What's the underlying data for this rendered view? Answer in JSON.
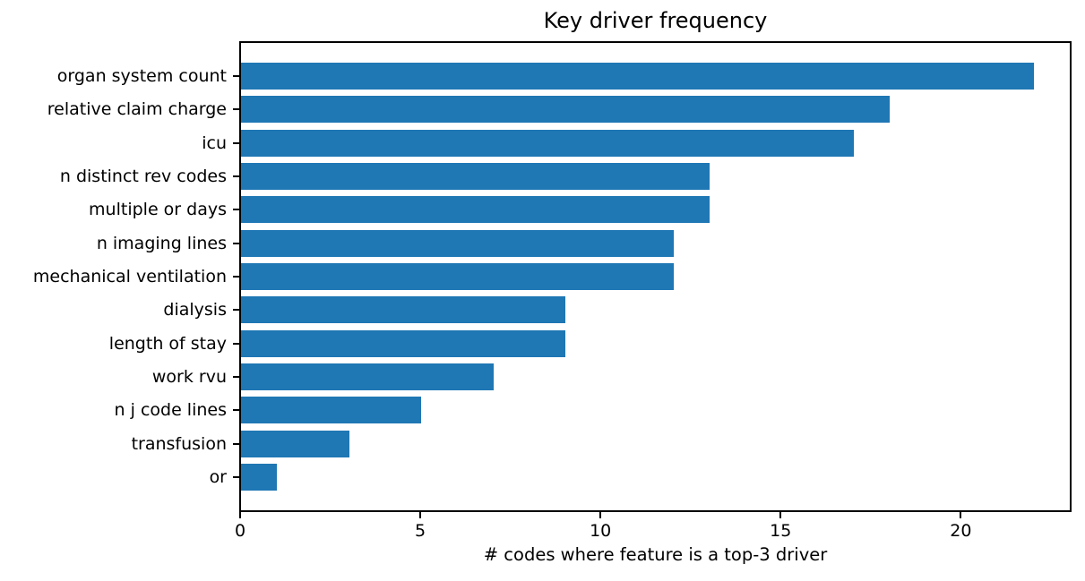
{
  "chart_data": {
    "type": "bar",
    "orientation": "horizontal",
    "title": "Key driver frequency",
    "xlabel": "# codes where feature is a top-3 driver",
    "ylabel": "",
    "categories": [
      "organ system count",
      "relative claim charge",
      "icu",
      "n distinct rev codes",
      "multiple or days",
      "n imaging lines",
      "mechanical ventilation",
      "dialysis",
      "length of stay",
      "work rvu",
      "n j code lines",
      "transfusion",
      "or"
    ],
    "values": [
      22,
      18,
      17,
      13,
      13,
      12,
      12,
      9,
      9,
      7,
      5,
      3,
      1
    ],
    "xticks": [
      0,
      5,
      10,
      15,
      20
    ],
    "xlim": [
      0,
      23.1
    ],
    "bar_color": "#1f77b4",
    "spine_color": "#000000",
    "text_color": "#000000",
    "background_color": "#ffffff",
    "grid": false,
    "legend": null
  }
}
